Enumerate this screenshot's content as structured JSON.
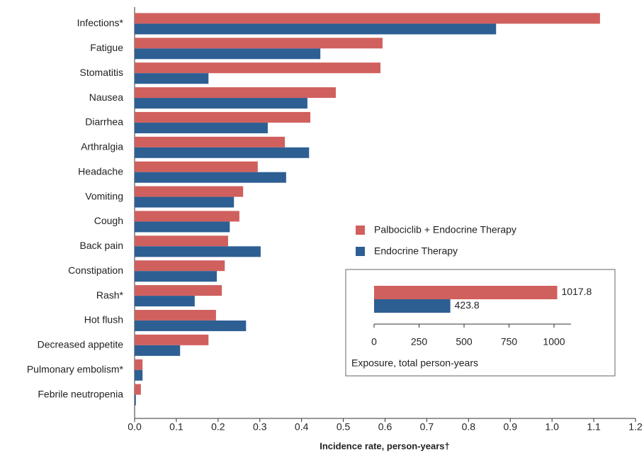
{
  "chart_data": [
    {
      "type": "hbar",
      "xlabel": "Incidence rate, person-years†",
      "categories": [
        "Infections*",
        "Fatigue",
        "Stomatitis",
        "Nausea",
        "Diarrhea",
        "Arthralgia",
        "Headache",
        "Vomiting",
        "Cough",
        "Back pain",
        "Constipation",
        "Rash*",
        "Hot flush",
        "Decreased appetite",
        "Pulmonary embolism*",
        "Febrile neutropenia"
      ],
      "series": [
        {
          "name": "Palbociclib + Endocrine Therapy",
          "color": "#d0605e",
          "values": [
            1.115,
            0.594,
            0.589,
            0.482,
            0.421,
            0.36,
            0.295,
            0.26,
            0.251,
            0.224,
            0.216,
            0.209,
            0.195,
            0.177,
            0.019,
            0.015
          ]
        },
        {
          "name": "Endocrine Therapy",
          "color": "#2d5f93",
          "values": [
            0.866,
            0.445,
            0.177,
            0.414,
            0.319,
            0.418,
            0.363,
            0.238,
            0.228,
            0.302,
            0.197,
            0.144,
            0.267,
            0.109,
            0.019,
            0.003
          ]
        }
      ],
      "xlim": [
        0,
        1.2
      ],
      "xticks": [
        {
          "value": 0,
          "label": "0.0"
        },
        0.1,
        0.2,
        0.3,
        0.4,
        0.5,
        0.6,
        0.7,
        0.8,
        0.9,
        {
          "value": 1,
          "label": "1.0"
        },
        1.1,
        1.2
      ],
      "legend": "center-right"
    },
    {
      "type": "hbar",
      "xlabel": "Exposure, total person-years",
      "categories": [
        null
      ],
      "series": [
        {
          "color": "#d0605e",
          "values": [
            1017.8
          ]
        },
        {
          "color": "#2d5f93",
          "values": [
            423.8
          ]
        }
      ],
      "xlim": [
        0,
        1000
      ],
      "xticks": [
        0,
        250,
        500,
        750,
        1000
      ]
    }
  ]
}
